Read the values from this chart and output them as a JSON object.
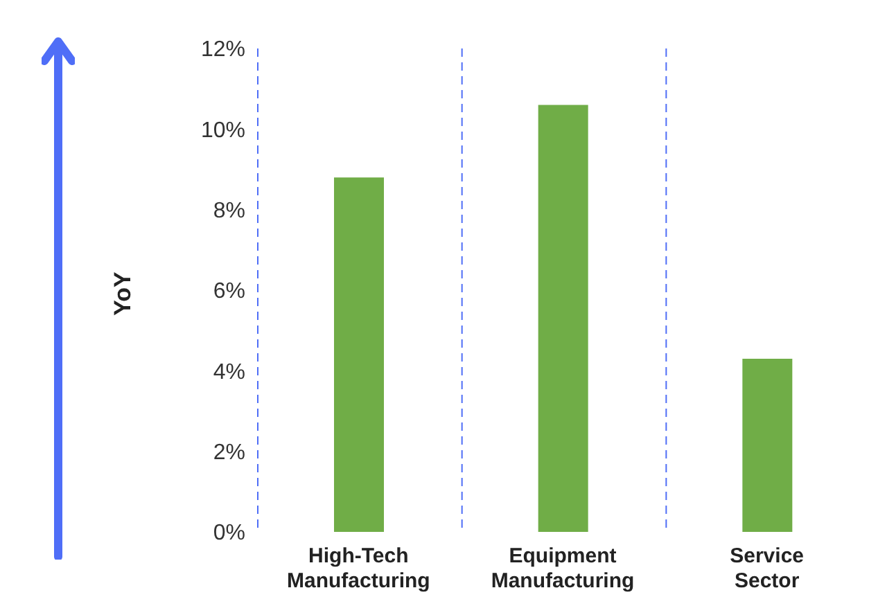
{
  "chart_data": {
    "type": "bar",
    "ylabel": "YoY",
    "categories": [
      "High-Tech Manufacturing",
      "Equipment Manufacturing",
      "Service Sector"
    ],
    "values": [
      8.8,
      10.6,
      4.3
    ],
    "color": "#70ad47",
    "ylim": [
      0,
      12
    ],
    "yticks": [
      {
        "value": 0,
        "label": "0%"
      },
      {
        "value": 2,
        "label": "2%"
      },
      {
        "value": 4,
        "label": "4%"
      },
      {
        "value": 6,
        "label": "6%"
      },
      {
        "value": 8,
        "label": "8%"
      },
      {
        "value": 10,
        "label": "10%"
      },
      {
        "value": 12,
        "label": "12%"
      }
    ],
    "grid": "x",
    "legend": false
  }
}
